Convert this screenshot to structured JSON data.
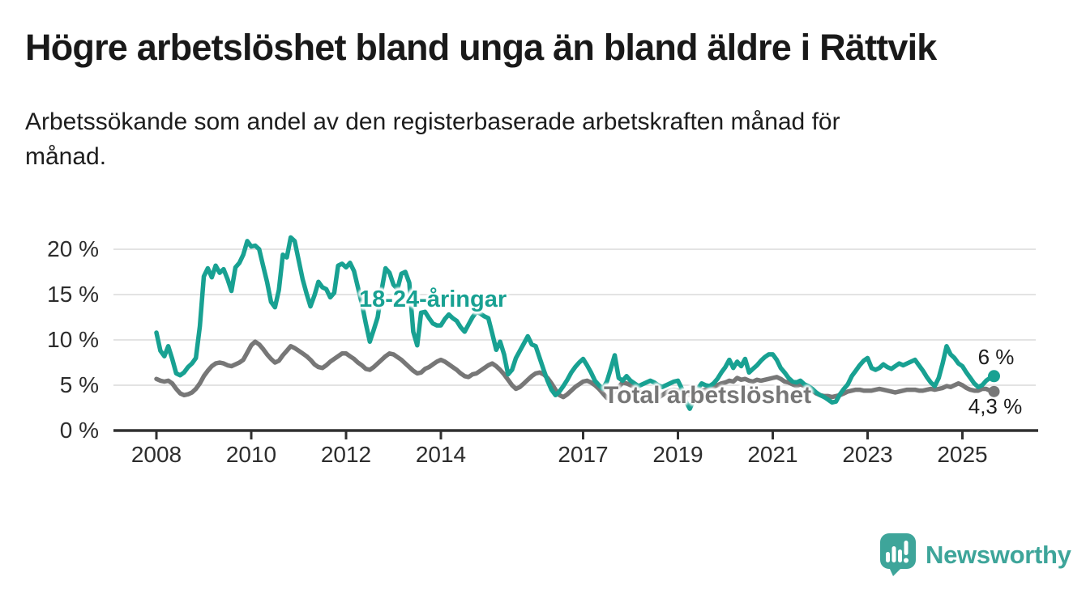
{
  "header": {
    "title": "Högre arbetslöshet bland unga än bland äldre i Rättvik",
    "subtitle": "Arbetssökande som andel av den registerbaserade arbetskraften månad för\nmånad."
  },
  "chart": {
    "series_labels": {
      "young": "18-24-åringar",
      "total": "Total arbetslöshet"
    },
    "end_labels": {
      "young": "6 %",
      "total": "4,3 %"
    },
    "colors": {
      "young": "#18A192",
      "total": "#777777",
      "grid": "#DADADA",
      "axis": "#303030",
      "tick_text": "#2d2d2d"
    }
  },
  "chart_data": {
    "type": "line",
    "title": "Högre arbetslöshet bland unga än bland äldre i Rättvik",
    "subtitle": "Arbetssökande som andel av den registerbaserade arbetskraften månad för månad.",
    "frequency": "monthly",
    "x_start": {
      "year": 2008,
      "month": 1
    },
    "x_end": {
      "year": 2025,
      "month": 9
    },
    "ylim": [
      0,
      21.5
    ],
    "y_unit": "%",
    "grid": "horizontal",
    "legend_position": "inline-labels",
    "y_ticks": [
      {
        "value": 0,
        "label": "0 %"
      },
      {
        "value": 5,
        "label": "5 %"
      },
      {
        "value": 10,
        "label": "10 %"
      },
      {
        "value": 15,
        "label": "15 %"
      },
      {
        "value": 20,
        "label": "20 %"
      }
    ],
    "x_ticks": [
      {
        "year": 2008,
        "label": "2008"
      },
      {
        "year": 2010,
        "label": "2010"
      },
      {
        "year": 2012,
        "label": "2012"
      },
      {
        "year": 2014,
        "label": "2014"
      },
      {
        "year": 2017,
        "label": "2017"
      },
      {
        "year": 2019,
        "label": "2019"
      },
      {
        "year": 2021,
        "label": "2021"
      },
      {
        "year": 2023,
        "label": "2023"
      },
      {
        "year": 2025,
        "label": "2025"
      }
    ],
    "series": [
      {
        "name": "Total arbetslöshet",
        "color": "#777777",
        "end_label": "4,3 %",
        "last_value": 4.3,
        "values": [
          5.7,
          5.5,
          5.4,
          5.5,
          5.2,
          4.6,
          4.1,
          3.9,
          4.0,
          4.2,
          4.6,
          5.2,
          6.0,
          6.6,
          7.1,
          7.4,
          7.5,
          7.4,
          7.2,
          7.1,
          7.3,
          7.5,
          7.8,
          8.6,
          9.4,
          9.8,
          9.5,
          9.0,
          8.4,
          7.9,
          7.5,
          7.7,
          8.3,
          8.8,
          9.3,
          9.1,
          8.8,
          8.5,
          8.2,
          7.8,
          7.3,
          7.0,
          6.9,
          7.2,
          7.6,
          7.9,
          8.2,
          8.5,
          8.5,
          8.2,
          7.9,
          7.5,
          7.2,
          6.8,
          6.7,
          7.0,
          7.4,
          7.8,
          8.2,
          8.5,
          8.4,
          8.1,
          7.8,
          7.4,
          7.0,
          6.6,
          6.3,
          6.4,
          6.8,
          7.0,
          7.3,
          7.6,
          7.8,
          7.6,
          7.3,
          7.0,
          6.7,
          6.3,
          6.0,
          5.9,
          6.2,
          6.3,
          6.6,
          6.9,
          7.2,
          7.4,
          7.1,
          6.7,
          6.2,
          5.6,
          5.0,
          4.6,
          4.8,
          5.2,
          5.6,
          6.0,
          6.3,
          6.4,
          6.2,
          5.8,
          5.2,
          4.5,
          3.9,
          3.7,
          4.0,
          4.4,
          4.8,
          5.1,
          5.4,
          5.5,
          5.3,
          5.0,
          4.6,
          4.1,
          3.6,
          3.8,
          4.3,
          4.8,
          5.3,
          5.2,
          5.0,
          4.8,
          4.4,
          4.1,
          3.8,
          3.5,
          3.4,
          3.6,
          3.9,
          4.2,
          4.4,
          4.5,
          4.4,
          4.3,
          4.1,
          3.9,
          4.0,
          4.2,
          4.4,
          4.5,
          4.6,
          4.8,
          5.0,
          5.2,
          5.3,
          5.5,
          5.4,
          5.8,
          5.6,
          5.7,
          5.5,
          5.4,
          5.6,
          5.5,
          5.6,
          5.7,
          5.8,
          5.9,
          5.7,
          5.4,
          5.3,
          5.1,
          4.9,
          5.1,
          4.9,
          4.6,
          4.4,
          4.1,
          3.9,
          3.8,
          3.8,
          3.7,
          3.8,
          3.9,
          4.1,
          4.3,
          4.4,
          4.5,
          4.5,
          4.4,
          4.4,
          4.4,
          4.5,
          4.6,
          4.5,
          4.4,
          4.3,
          4.2,
          4.3,
          4.4,
          4.5,
          4.5,
          4.5,
          4.4,
          4.4,
          4.5,
          4.6,
          4.5,
          4.6,
          4.7,
          4.9,
          4.8,
          5.0,
          5.2,
          5.0,
          4.7,
          4.5,
          4.4,
          4.4,
          4.6,
          4.6,
          4.4,
          4.3
        ]
      },
      {
        "name": "18-24-åringar",
        "color": "#18A192",
        "end_label": "6 %",
        "last_value": 6.0,
        "values": [
          10.8,
          8.8,
          8.2,
          9.3,
          7.9,
          6.3,
          6.1,
          6.4,
          7.0,
          7.4,
          8.0,
          11.5,
          17.0,
          17.9,
          16.9,
          18.2,
          17.4,
          17.8,
          16.7,
          15.4,
          18.0,
          18.5,
          19.4,
          20.9,
          20.3,
          20.4,
          20.0,
          18.2,
          16.4,
          14.2,
          13.6,
          15.5,
          19.4,
          19.1,
          21.3,
          20.9,
          18.8,
          16.7,
          15.1,
          13.7,
          14.9,
          16.4,
          15.8,
          15.6,
          14.7,
          15.2,
          18.2,
          18.4,
          18.0,
          18.5,
          17.6,
          15.8,
          14.0,
          11.8,
          9.8,
          11.1,
          12.5,
          15.5,
          17.9,
          17.4,
          16.1,
          15.6,
          17.3,
          17.5,
          16.3,
          10.9,
          9.4,
          13.0,
          13.1,
          12.4,
          11.8,
          11.6,
          11.6,
          12.3,
          12.8,
          12.4,
          12.1,
          11.4,
          10.9,
          11.7,
          12.5,
          13.1,
          12.9,
          12.6,
          12.4,
          10.7,
          8.9,
          9.8,
          8.4,
          6.2,
          6.7,
          8.0,
          8.8,
          9.6,
          10.4,
          9.5,
          9.3,
          8.0,
          6.7,
          5.5,
          4.5,
          3.9,
          4.3,
          4.9,
          5.6,
          6.4,
          7.0,
          7.5,
          7.9,
          7.2,
          6.4,
          5.5,
          5.0,
          4.6,
          5.4,
          6.8,
          8.3,
          5.8,
          5.5,
          6.0,
          5.5,
          5.2,
          4.9,
          5.1,
          5.3,
          5.5,
          5.3,
          5.0,
          4.8,
          5.0,
          5.2,
          5.4,
          5.5,
          4.6,
          3.2,
          2.4,
          3.4,
          4.6,
          5.2,
          5.0,
          4.9,
          5.2,
          5.7,
          6.4,
          7.0,
          7.8,
          6.9,
          7.6,
          7.1,
          7.9,
          6.4,
          6.8,
          7.2,
          7.7,
          8.1,
          8.4,
          8.4,
          7.8,
          6.9,
          6.4,
          5.8,
          5.4,
          5.3,
          5.5,
          5.1,
          4.9,
          4.6,
          4.2,
          3.9,
          3.7,
          3.4,
          3.1,
          3.2,
          4.0,
          4.6,
          5.1,
          6.0,
          6.6,
          7.2,
          7.7,
          8.0,
          6.9,
          6.7,
          6.9,
          7.3,
          7.0,
          6.8,
          7.1,
          7.4,
          7.2,
          7.4,
          7.6,
          7.8,
          7.2,
          6.6,
          5.9,
          5.3,
          4.9,
          5.8,
          7.4,
          9.3,
          8.4,
          8.0,
          7.4,
          7.1,
          6.4,
          5.8,
          5.2,
          4.8,
          5.0,
          5.5,
          5.8,
          6.0
        ]
      }
    ]
  },
  "footer": {
    "brand": "Newsworthy"
  }
}
